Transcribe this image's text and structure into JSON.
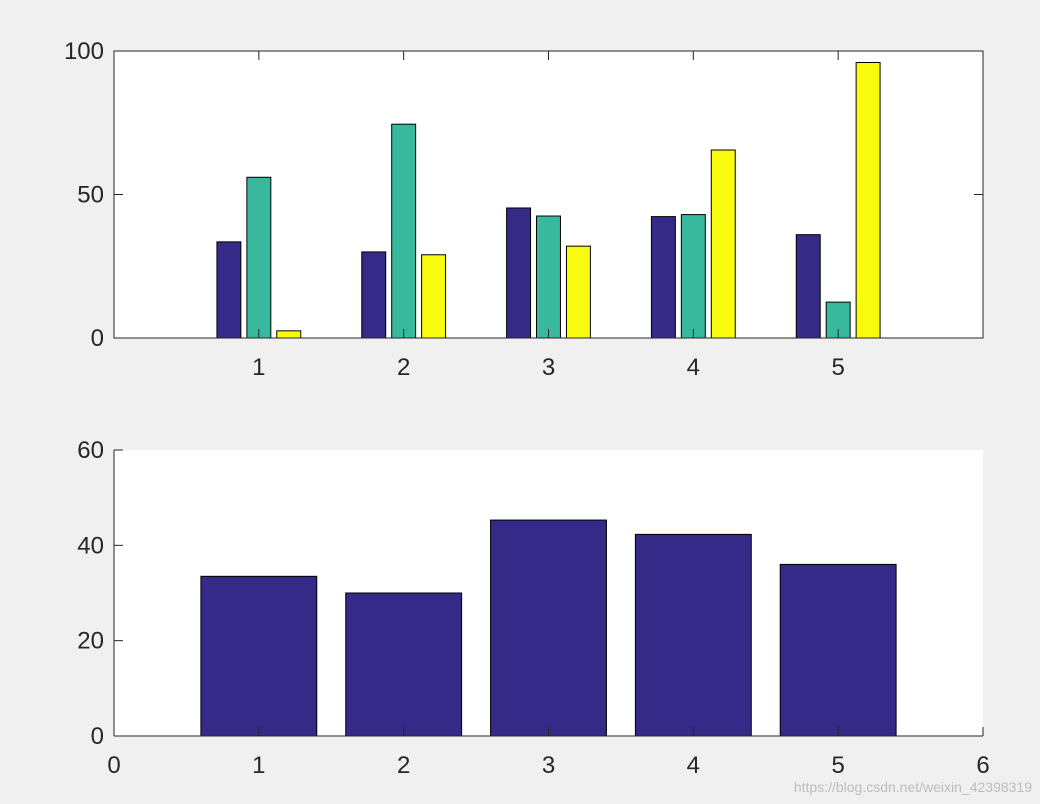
{
  "colors": {
    "figure_bg": "#f0f0f0",
    "axes_bg": "#ffffff",
    "axis_line": "#262626",
    "series": [
      "#352a87",
      "#38b99e",
      "#f9fb0e"
    ]
  },
  "watermark": "https://blog.csdn.net/weixin_42398319",
  "chart_data": [
    {
      "type": "bar",
      "categories": [
        "1",
        "2",
        "3",
        "4",
        "5"
      ],
      "series": [
        {
          "values": [
            33.5,
            30.0,
            45.3,
            42.3,
            36.0
          ]
        },
        {
          "values": [
            56.0,
            74.5,
            42.5,
            43.0,
            12.5
          ]
        },
        {
          "values": [
            2.5,
            29.0,
            32.0,
            65.5,
            96.0
          ]
        }
      ],
      "xlim": [
        0,
        6
      ],
      "ylim": [
        0,
        100
      ],
      "xticks": [
        1,
        2,
        3,
        4,
        5
      ],
      "yticks": [
        0,
        50,
        100
      ],
      "grid": false,
      "box": true
    },
    {
      "type": "bar",
      "categories": [
        "1",
        "2",
        "3",
        "4",
        "5"
      ],
      "series": [
        {
          "values": [
            33.5,
            30.0,
            45.3,
            42.3,
            36.0
          ]
        }
      ],
      "xlim": [
        0,
        6
      ],
      "ylim": [
        0,
        60
      ],
      "xticks": [
        0,
        1,
        2,
        3,
        4,
        5,
        6
      ],
      "yticks": [
        0,
        20,
        40,
        60
      ],
      "grid": false,
      "box": false
    }
  ]
}
